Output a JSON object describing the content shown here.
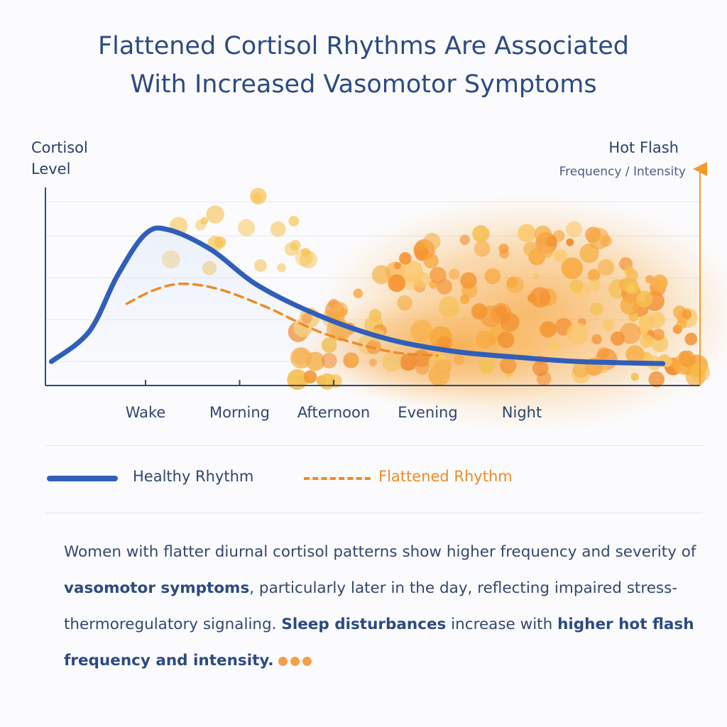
{
  "title": {
    "line1": "Flattened Cortisol Rhythms Are Associated",
    "line2": "With Increased Vasomotor Symptoms"
  },
  "chart_data": {
    "type": "line",
    "ylabel_left": "Cortisol Level",
    "ylabel_left_line1": "Cortisol",
    "ylabel_left_line2": "Level",
    "ylabel_right": "Hot Flash",
    "ylabel_right_sub": "Frequency / Intensity",
    "categories": [
      "Wake",
      "Morning",
      "Afternoon",
      "Evening",
      "Night"
    ],
    "series": [
      {
        "name": "Healthy Rhythm",
        "style": "solid",
        "color": "#2f5fb8",
        "x": [
          -1.0,
          -0.6,
          -0.3,
          0.0,
          0.25,
          0.7,
          1.2,
          1.9,
          2.6,
          3.3,
          4.0,
          4.6,
          5.5
        ],
        "y": [
          0.12,
          0.27,
          0.55,
          0.76,
          0.78,
          0.68,
          0.5,
          0.34,
          0.23,
          0.17,
          0.14,
          0.12,
          0.11
        ]
      },
      {
        "name": "Flattened Rhythm",
        "style": "dashed",
        "color": "#f08a24",
        "x": [
          -0.2,
          0.1,
          0.4,
          0.8,
          1.3,
          1.9,
          2.6,
          3.1
        ],
        "y": [
          0.41,
          0.48,
          0.51,
          0.48,
          0.39,
          0.26,
          0.17,
          0.15
        ]
      }
    ],
    "hot_flash_intensity": {
      "color": "#f39a2e",
      "x": [
        1.2,
        1.8,
        2.4,
        3.0,
        3.6,
        4.2,
        4.8,
        5.3,
        5.8
      ],
      "y": [
        0.15,
        0.28,
        0.45,
        0.62,
        0.72,
        0.75,
        0.68,
        0.5,
        0.25
      ]
    },
    "grid": true,
    "legend_position": "bottom"
  },
  "legend": {
    "healthy_label": "Healthy Rhythm",
    "flattened_label": "Flattened Rhythm"
  },
  "body": {
    "p1": "Women with flatter diurnal cortisol patterns show higher frequency and severity of ",
    "b1": "vasomotor symptoms",
    "p2": ", particularly later in the day, reflecting impaired stress-thermoregulatory signaling. ",
    "b2": "Sleep disturbances",
    "p3": " increase with ",
    "b3": "higher hot flash frequency and intensity."
  }
}
